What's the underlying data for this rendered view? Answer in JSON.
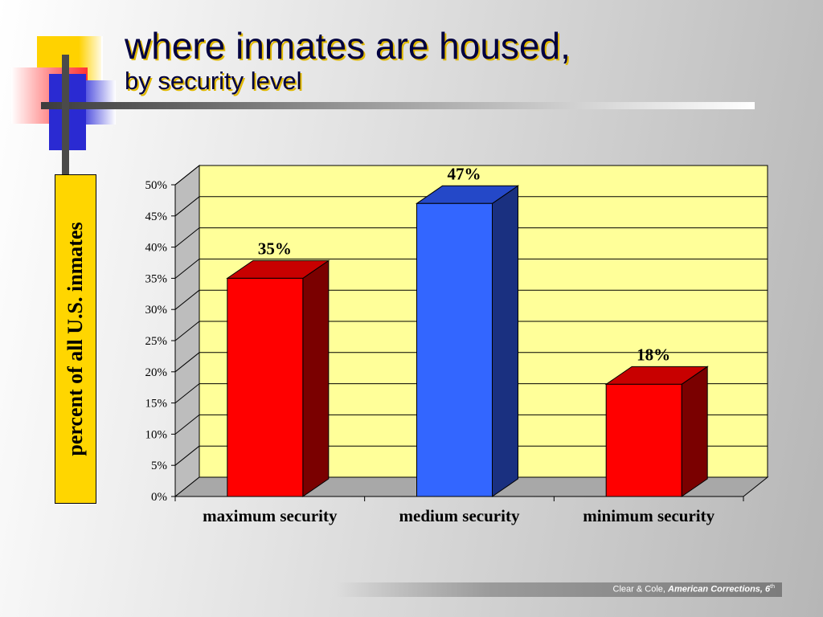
{
  "slide": {
    "title_line1": "where inmates are housed,",
    "title_line2": "by security level",
    "footer_prefix": "Clear & Cole, ",
    "footer_book": "American Corrections, 6",
    "footer_edition_sup": "th"
  },
  "colors": {
    "plot_background": "#ffff99",
    "wall": "#bdbdbd",
    "floor": "#a8a8a8",
    "red_bar": "#ff0000",
    "red_bar_top": "#c80000",
    "red_bar_side": "#7a0000",
    "blue_bar": "#3366ff",
    "blue_bar_top": "#2448c8",
    "blue_bar_side": "#1a3080",
    "ylabel_box": "#ffd600"
  },
  "chart_data": {
    "type": "bar",
    "style": "3d-column",
    "categories": [
      "maximum security",
      "medium security",
      "minimum security"
    ],
    "values": [
      35,
      47,
      18
    ],
    "value_labels": [
      "35%",
      "47%",
      "18%"
    ],
    "bar_colors": [
      "red",
      "blue",
      "red"
    ],
    "ylabel": "percent of all U.S. inmates",
    "ylim": [
      0,
      50
    ],
    "yticks": [
      "0%",
      "5%",
      "10%",
      "15%",
      "20%",
      "25%",
      "30%",
      "35%",
      "40%",
      "45%",
      "50%"
    ],
    "grid": true,
    "legend": "none"
  }
}
